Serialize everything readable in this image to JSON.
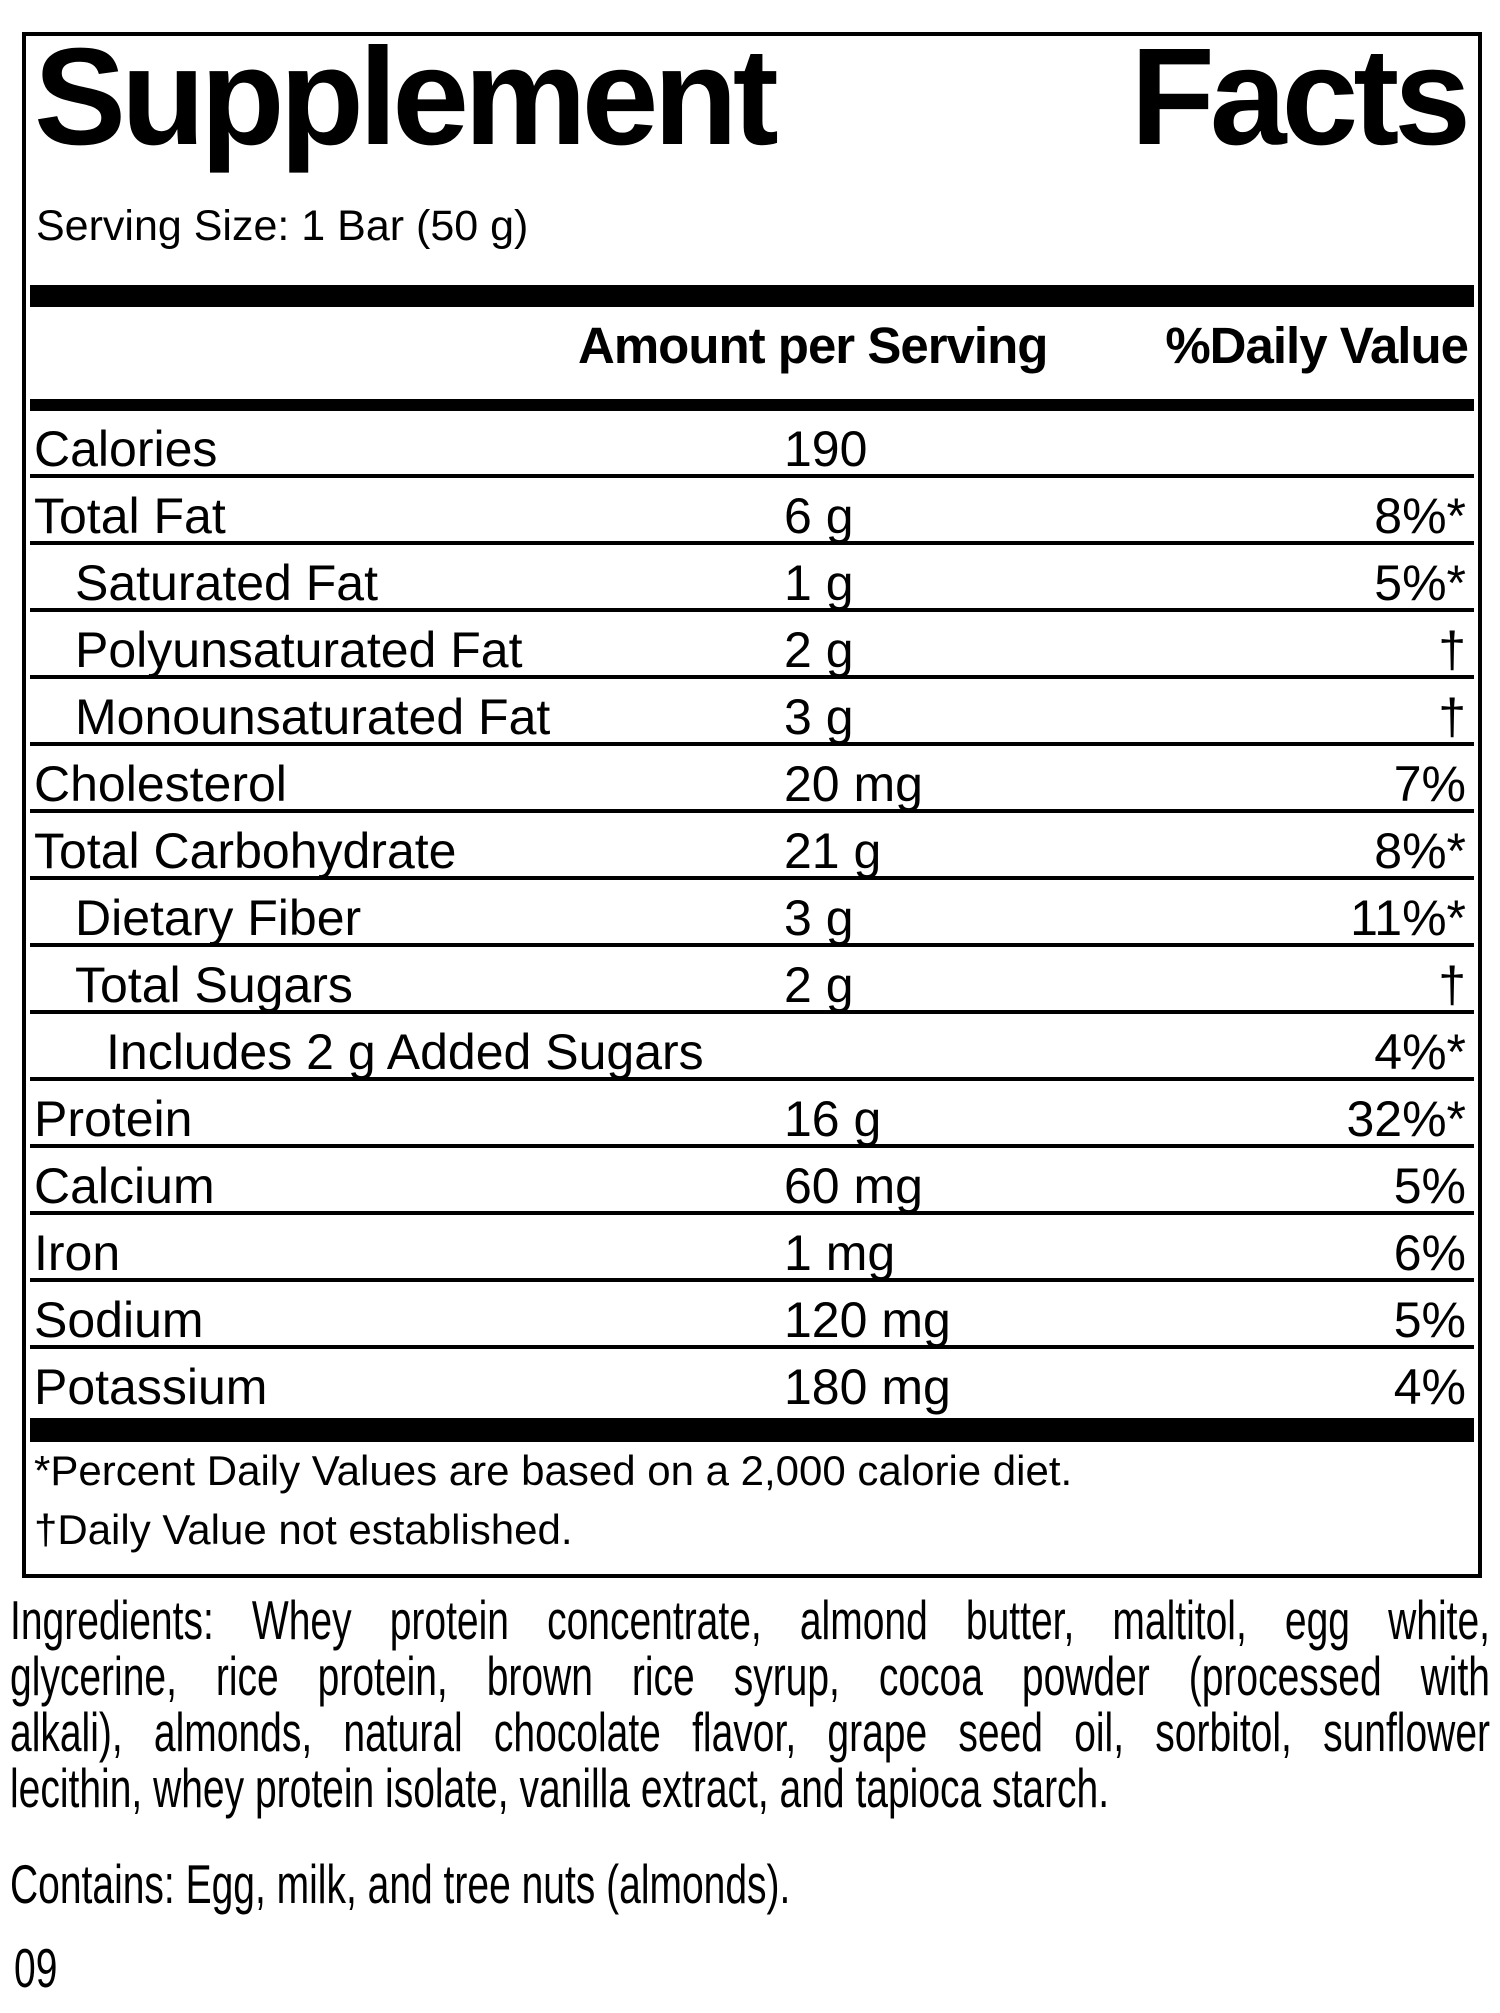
{
  "label": {
    "title_left": "Supplement",
    "title_right": "Facts",
    "serving_size": "Serving Size: 1 Bar (50 g)",
    "header": {
      "amount": "Amount per Serving",
      "daily_value": "%Daily Value"
    },
    "rows": [
      {
        "name": "Calories",
        "amount": "190",
        "dv": "",
        "indent": 0
      },
      {
        "name": "Total Fat",
        "amount": "6 g",
        "dv": "8%*",
        "indent": 0
      },
      {
        "name": "Saturated Fat",
        "amount": "1 g",
        "dv": "5%*",
        "indent": 1
      },
      {
        "name": "Polyunsaturated Fat",
        "amount": "2 g",
        "dv": "†",
        "indent": 1
      },
      {
        "name": "Monounsaturated Fat",
        "amount": "3 g",
        "dv": "†",
        "indent": 1
      },
      {
        "name": "Cholesterol",
        "amount": "20 mg",
        "dv": "7%",
        "indent": 0
      },
      {
        "name": "Total Carbohydrate",
        "amount": "21 g",
        "dv": "8%*",
        "indent": 0
      },
      {
        "name": "Dietary Fiber",
        "amount": "3 g",
        "dv": "11%*",
        "indent": 1
      },
      {
        "name": "Total Sugars",
        "amount": "2 g",
        "dv": "†",
        "indent": 1
      },
      {
        "name": "Includes 2 g Added Sugars",
        "amount": "",
        "dv": "4%*",
        "indent": 2
      },
      {
        "name": "Protein",
        "amount": "16 g",
        "dv": "32%*",
        "indent": 0
      },
      {
        "name": "Calcium",
        "amount": "60 mg",
        "dv": "5%",
        "indent": 0
      },
      {
        "name": "Iron",
        "amount": "1 mg",
        "dv": "6%",
        "indent": 0
      },
      {
        "name": "Sodium",
        "amount": "120 mg",
        "dv": "5%",
        "indent": 0
      },
      {
        "name": "Potassium",
        "amount": "180 mg",
        "dv": "4%",
        "indent": 0
      }
    ],
    "footnotes": [
      "*Percent Daily Values are based on a 2,000 calorie diet.",
      "†Daily Value not established."
    ]
  },
  "ingredients": {
    "lines": [
      "Ingredients: Whey protein concentrate, almond butter, maltitol, egg white,",
      "glycerine, rice protein, brown rice syrup, cocoa powder (processed with",
      "alkali), almonds, natural chocolate flavor, grape seed oil, sorbitol, sunflower",
      "lecithin, whey protein isolate, vanilla extract, and tapioca starch."
    ]
  },
  "contains": "Contains: Egg, milk, and tree nuts (almonds).",
  "footer_code": "09",
  "colors": {
    "text": "#000000",
    "background": "#ffffff",
    "rule": "#000000"
  }
}
